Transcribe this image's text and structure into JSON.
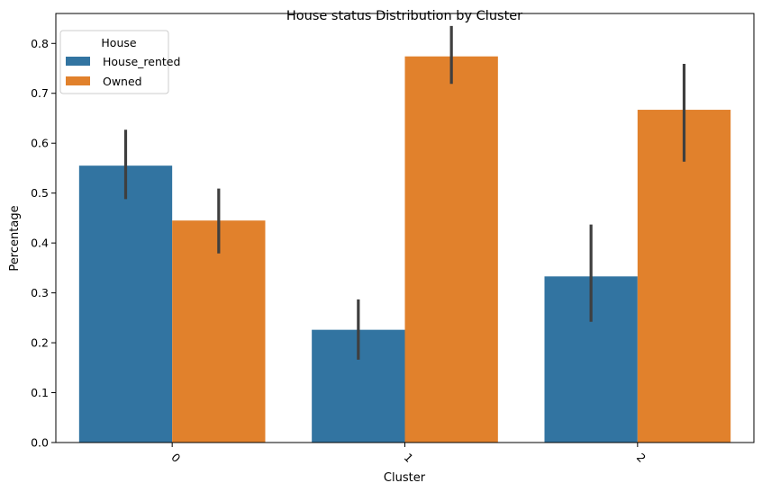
{
  "chart_data": {
    "type": "bar",
    "title": "House status Distribution by Cluster",
    "xlabel": "Cluster",
    "ylabel": "Percentage",
    "categories": [
      "0",
      "1",
      "2"
    ],
    "ylim": [
      0,
      0.86
    ],
    "yticks": [
      0.0,
      0.1,
      0.2,
      0.3,
      0.4,
      0.5,
      0.6,
      0.7,
      0.8
    ],
    "ytick_labels": [
      "0.0",
      "0.1",
      "0.2",
      "0.3",
      "0.4",
      "0.5",
      "0.6",
      "0.7",
      "0.8"
    ],
    "xtick_rotation_deg": 45,
    "grid": false,
    "legend": {
      "title": "House",
      "position": "upper-left"
    },
    "series": [
      {
        "name": "House_rented",
        "color": "#3274a1",
        "values": [
          0.555,
          0.226,
          0.333
        ],
        "ci_low": [
          0.488,
          0.166,
          0.242
        ],
        "ci_high": [
          0.627,
          0.287,
          0.437
        ]
      },
      {
        "name": "Owned",
        "color": "#e1812c",
        "values": [
          0.445,
          0.774,
          0.667
        ],
        "ci_low": [
          0.379,
          0.719,
          0.563
        ],
        "ci_high": [
          0.509,
          0.835,
          0.759
        ]
      }
    ],
    "errorbar_color": "#3f3f3f"
  }
}
